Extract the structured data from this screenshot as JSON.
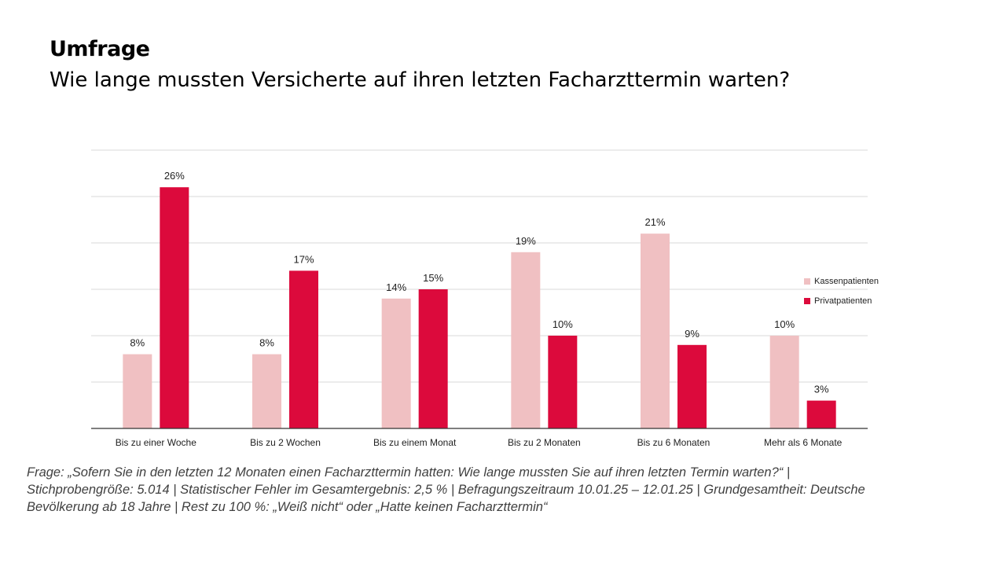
{
  "header": {
    "kicker": "Umfrage",
    "title": "Wie lange mussten Versicherte auf ihren letzten Facharzttermin warten?"
  },
  "footnote": {
    "lines": [
      "Frage: „Sofern Sie in den letzten 12 Monaten einen Facharzttermin hatten: Wie lange mussten Sie auf ihren letzten Termin warten?“ |",
      "Stichprobengröße: 5.014 | Statistischer Fehler im Gesamtergebnis: 2,5 % | Befragungszeitraum 10.01.25 – 12.01.25 |  Grundgesamtheit: Deutsche",
      "Bevölkerung ab 18 Jahre | Rest zu 100 %: „Weiß nicht“ oder „Hatte keinen Facharzttermin“"
    ]
  },
  "chart_data": {
    "type": "bar",
    "categories": [
      "Bis zu einer Woche",
      "Bis zu 2 Wochen",
      "Bis zu einem Monat",
      "Bis zu 2 Monaten",
      "Bis zu 6 Monaten",
      "Mehr als 6 Monate"
    ],
    "series": [
      {
        "name": "Kassenpatienten",
        "values": [
          8,
          8,
          14,
          19,
          21,
          10
        ],
        "labels": [
          "8%",
          "8%",
          "14%",
          "19%",
          "21%",
          "10%"
        ],
        "color": "#f0c0c2"
      },
      {
        "name": "Privatpatienten",
        "values": [
          26,
          17,
          15,
          10,
          9,
          3
        ],
        "labels": [
          "26%",
          "17%",
          "15%",
          "10%",
          "9%",
          "3%"
        ],
        "color": "#dc0a3c"
      }
    ],
    "ylim": [
      0,
      30
    ],
    "grid": true,
    "gridline_color": "#d9d9d9",
    "legend": "right",
    "y_tick_labels_shown": false
  }
}
